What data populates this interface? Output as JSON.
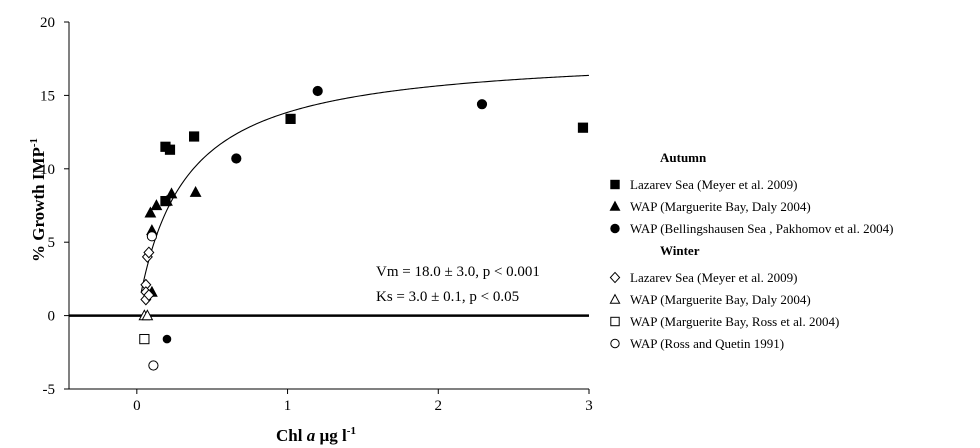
{
  "chart_data": {
    "type": "scatter",
    "title": "",
    "xlabel": {
      "main": "Chl",
      "italic": " a",
      "units": " µg l",
      "sup": "-1"
    },
    "ylabel": {
      "main": "% Growth IMP",
      "sup": "-1"
    },
    "xlim": [
      -0.45,
      3.0
    ],
    "ylim": [
      -5,
      20
    ],
    "x_ticks": [
      0,
      1,
      2,
      3
    ],
    "y_ticks": [
      -5,
      0,
      5,
      10,
      15,
      20
    ],
    "grid": false,
    "zero_line": true,
    "fit": {
      "type": "michaelis-menten",
      "Vm": 18.0,
      "Ks": 3.0,
      "x_scale": 0.1,
      "x_from": 0.03,
      "x_to": 3.0
    },
    "annotations": {
      "vm": "Vm = 18.0 ± 3.0, p < 0.001",
      "ks": "Ks =   3.0 ± 0.1, p < 0.05"
    },
    "legend": {
      "position": "right",
      "groups": [
        {
          "heading": "Autumn",
          "entries": [
            0,
            1,
            2
          ]
        },
        {
          "heading": "Winter",
          "entries": [
            3,
            4,
            5,
            6
          ]
        }
      ]
    },
    "series": [
      {
        "name": "Lazarev Sea (Meyer et al. 2009)",
        "marker": "square",
        "filled": true,
        "x": [
          0.19,
          0.22,
          0.19,
          0.38,
          1.02,
          2.96
        ],
        "y": [
          11.5,
          11.3,
          7.8,
          12.2,
          13.4,
          12.8
        ]
      },
      {
        "name": "WAP (Marguerite Bay, Daly 2004)",
        "marker": "triangle",
        "filled": true,
        "x": [
          0.09,
          0.1,
          0.13,
          0.2,
          0.23,
          0.39,
          0.1
        ],
        "y": [
          7.0,
          5.8,
          7.5,
          7.8,
          8.3,
          8.4,
          1.6
        ]
      },
      {
        "name": "WAP (Bellingshausen Sea , Pakhomov et al. 2004)",
        "marker": "circle",
        "filled": true,
        "x": [
          1.2,
          0.66,
          2.29,
          0.2
        ],
        "y": [
          15.3,
          10.7,
          14.4,
          -1.6
        ]
      },
      {
        "name": "Lazarev Sea (Meyer et al. 2009)",
        "marker": "diamond",
        "filled": false,
        "x": [
          0.06,
          0.06,
          0.06,
          0.07,
          0.08,
          0.08
        ],
        "y": [
          2.1,
          1.6,
          1.1,
          4.0,
          4.3,
          1.4
        ]
      },
      {
        "name": "WAP (Marguerite Bay, Daly 2004)",
        "marker": "triangle",
        "filled": false,
        "x": [
          0.05,
          0.07
        ],
        "y": [
          0.0,
          0.0
        ]
      },
      {
        "name": "WAP (Marguerite Bay, Ross et al. 2004)",
        "marker": "square",
        "filled": false,
        "x": [
          0.05
        ],
        "y": [
          -1.6
        ]
      },
      {
        "name": "WAP (Ross and Quetin 1991)",
        "marker": "circle",
        "filled": false,
        "x": [
          0.1,
          0.11
        ],
        "y": [
          5.4,
          -3.4
        ]
      }
    ]
  }
}
